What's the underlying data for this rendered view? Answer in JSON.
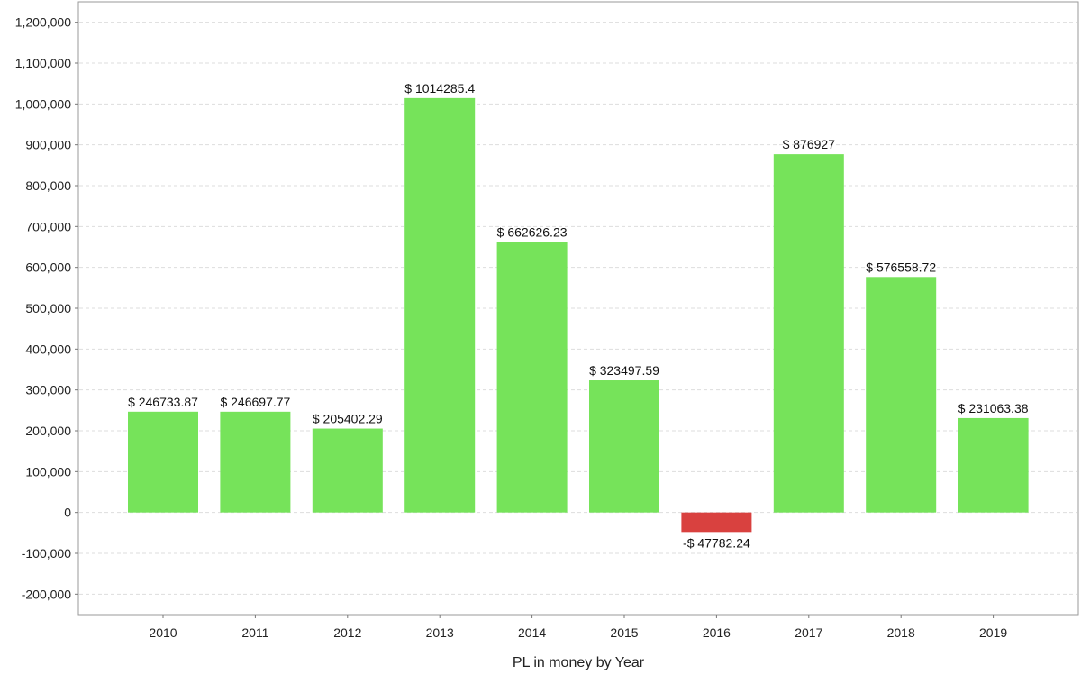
{
  "chart_data": {
    "type": "bar",
    "categories": [
      "2010",
      "2011",
      "2012",
      "2013",
      "2014",
      "2015",
      "2016",
      "2017",
      "2018",
      "2019"
    ],
    "values": [
      246733.87,
      246697.77,
      205402.29,
      1014285.4,
      662626.23,
      323497.59,
      -47782.24,
      876927,
      576558.72,
      231063.38
    ],
    "data_labels": [
      "$ 246733.87",
      "$ 246697.77",
      "$ 205402.29",
      "$ 1014285.4",
      "$ 662626.23",
      "$ 323497.59",
      "-$ 47782.24",
      "$ 876927",
      "$ 576558.72",
      "$ 231063.38"
    ],
    "xlabel": "PL in money by Year",
    "ylabel": "",
    "ylim": [
      -250000,
      1250000
    ],
    "y_ticks": [
      -200000,
      -100000,
      0,
      100000,
      200000,
      300000,
      400000,
      500000,
      600000,
      700000,
      800000,
      900000,
      1000000,
      1100000,
      1200000
    ],
    "y_tick_labels": [
      "-200,000",
      "-100,000",
      "0",
      "100,000",
      "200,000",
      "300,000",
      "400,000",
      "500,000",
      "600,000",
      "700,000",
      "800,000",
      "900,000",
      "1,000,000",
      "1,100,000",
      "1,200,000"
    ],
    "grid": true,
    "legend": "none",
    "colors": {
      "positive": "#76e35a",
      "negative": "#d9413f",
      "grid": "#dddddd",
      "frame": "#9a9a9a"
    }
  }
}
